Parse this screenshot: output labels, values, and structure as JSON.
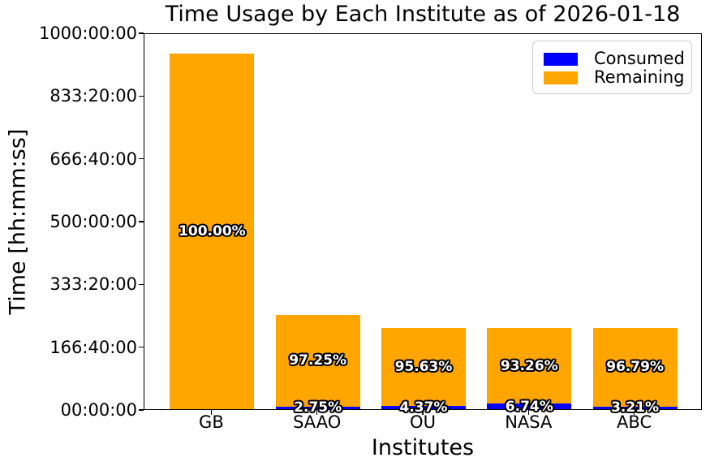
{
  "chart_data": {
    "type": "bar",
    "stacked": true,
    "title": "Time Usage by Each Institute as of 2026-01-18",
    "xlabel": "Institutes",
    "ylabel": "Time [hh:mm:ss]",
    "categories": [
      "GB",
      "SAAO",
      "OU",
      "NASA",
      "ABC"
    ],
    "series": [
      {
        "name": "Consumed",
        "color": "#0000ff",
        "values_hours": [
          0,
          6.9,
          9.4,
          14.5,
          6.9
        ],
        "pct_labels": [
          "",
          "2.75%",
          "4.37%",
          "6.74%",
          "3.21%"
        ]
      },
      {
        "name": "Remaining",
        "color": "#ffa500",
        "values_hours": [
          944,
          243.1,
          206.1,
          201.0,
          208.6
        ],
        "pct_labels": [
          "100.00%",
          "97.25%",
          "95.63%",
          "93.26%",
          "96.79%"
        ]
      }
    ],
    "totals_hours": [
      944,
      250,
      215.5,
      215.5,
      215.5
    ],
    "y_axis": {
      "lim_hours": [
        0,
        1000
      ],
      "tick_hours": [
        0,
        166.6667,
        333.3333,
        500,
        666.6667,
        833.3333,
        1000
      ],
      "tick_labels": [
        "00:00:00",
        "166:40:00",
        "333:20:00",
        "500:00:00",
        "666:40:00",
        "833:20:00",
        "1000:00:00"
      ]
    },
    "legend": {
      "position": "upper right",
      "entries": [
        {
          "label": "Consumed",
          "color": "#0000ff"
        },
        {
          "label": "Remaining",
          "color": "#ffa500"
        }
      ]
    },
    "grid": false,
    "label_style": {
      "text_color": "#ffffff",
      "outline_color": "#000000"
    }
  }
}
